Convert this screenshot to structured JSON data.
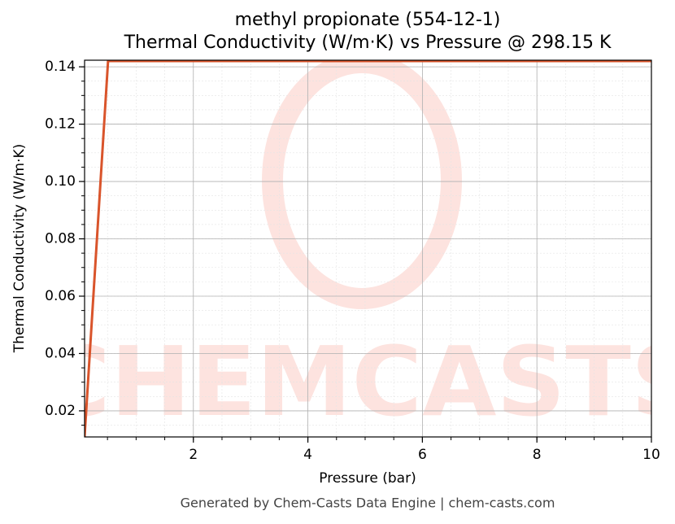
{
  "chart_data": {
    "type": "line",
    "title": "methyl propionate (554-12-1)",
    "subtitle": "Thermal Conductivity (W/m·K) vs Pressure @ 298.15 K",
    "x_label": "Pressure (bar)",
    "y_label": "Thermal Conductivity (W/m·K)",
    "watermark": "CHEMCASTS",
    "footer": "Generated by Chem-Casts Data Engine | chem-casts.com",
    "x": [
      0.1,
      0.51,
      10
    ],
    "series": [
      {
        "name": "methyl propionate",
        "color": "#d9542b",
        "values": [
          0.0109,
          0.142,
          0.142
        ]
      }
    ],
    "xlim": [
      0.1,
      10
    ],
    "ylim": [
      0.0109,
      0.1423
    ],
    "xticks": [
      2,
      4,
      6,
      8,
      10
    ],
    "yticks": [
      0.02,
      0.04,
      0.06,
      0.08,
      {
        "value": 0.1,
        "label": "0.10"
      },
      0.12,
      0.14
    ],
    "grid": true,
    "minor_grid": true
  }
}
